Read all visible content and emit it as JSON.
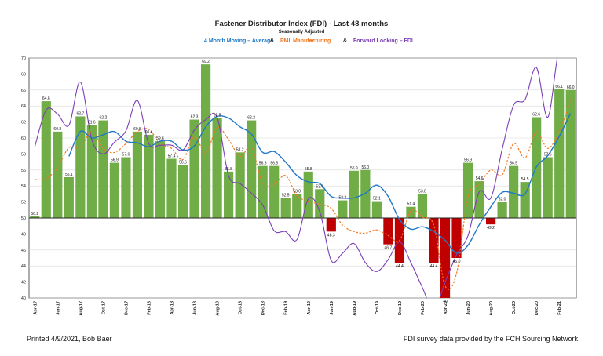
{
  "chart_data": {
    "type": "bar",
    "title": "Fastener Distributor Index (FDI) - Last 48 months",
    "subtitle": "Seasonally Adjusted",
    "legend": [
      {
        "text": "4 Month Moving – Average",
        "color": "#1f77c8"
      },
      {
        "text": "&",
        "color": "#222222"
      },
      {
        "text": "PMI",
        "color": "#f07820"
      },
      {
        "text": "Manufacturing",
        "color": "#f07820"
      },
      {
        "text": "&",
        "color": "#222222"
      },
      {
        "text": "Forward Looking – FDI",
        "color": "#7b3fb5"
      }
    ],
    "ylim": [
      40,
      70
    ],
    "yticks": [
      "40",
      "42",
      "44",
      "46",
      "48",
      "50",
      "52",
      "54",
      "56",
      "58",
      "60",
      "62",
      "64",
      "66",
      "68",
      "70"
    ],
    "baseline": 50,
    "grid": true,
    "xtick_labels": [
      "Apr-17",
      "Jun-17",
      "Aug-17",
      "Oct-17",
      "Dec-17",
      "Feb-18",
      "Apr-18",
      "Jun-18",
      "Aug-18",
      "Oct-18",
      "Dec-18",
      "Feb-19",
      "Apr-19",
      "Jun-19",
      "Aug-19",
      "Oct-19",
      "Dec-19",
      "Feb-20",
      "Apr-20",
      "Jun-20",
      "Aug-20",
      "Oct-20",
      "Dec-20",
      "Feb-21"
    ],
    "fdi_values": [
      50.2,
      64.6,
      60.8,
      55.1,
      62.7,
      61.6,
      62.2,
      56.9,
      57.6,
      60.8,
      60.4,
      59.6,
      57.4,
      56.6,
      62.3,
      69.2,
      62.5,
      55.8,
      58.2,
      62.2,
      56.5,
      56.5,
      52.5,
      53.0,
      55.8,
      53.6,
      48.3,
      52.2,
      55.9,
      56.0,
      52.1,
      46.7,
      44.4,
      51.4,
      53.0,
      44.4,
      40.0,
      45.0,
      56.9,
      54.6,
      49.2,
      52.0,
      56.5,
      54.5,
      62.6,
      57.6,
      66.1,
      66.0
    ],
    "fdi_labels": [
      "50.2",
      "64.6",
      "60.8",
      "55.1",
      "62.7",
      "61.6",
      "62.2",
      "56.9",
      "57.6",
      "60.8",
      "60.4",
      "59.6",
      "57.4",
      "56.6",
      "62.3",
      "69.2",
      "62.5",
      "55.8",
      "58.2",
      "62.2",
      "56.5",
      "56.5",
      "52.5",
      "53.0",
      "55.8",
      "53.6",
      "48.3",
      "52.2",
      "55.9",
      "56.0",
      "52.1",
      "46.7",
      "44.4",
      "51.4",
      "53.0",
      "44.4",
      "40",
      "45.0",
      "56.9",
      "54.6",
      "49.2",
      "52.0",
      "56.5",
      "54.5",
      "62.6",
      "57.6",
      "66.1",
      "66.0"
    ],
    "colors": {
      "above": "#70ad47",
      "below": "#c00000",
      "ma": "#1f77c8",
      "pmi": "#f07820",
      "forward": "#7b3fb5"
    },
    "series": [
      {
        "name": "4 Month Moving – Average",
        "values": [
          null,
          null,
          null,
          57.7,
          60.8,
          60.0,
          60.4,
          60.8,
          59.6,
          59.4,
          58.9,
          59.6,
          59.6,
          58.5,
          59.0,
          61.4,
          62.7,
          62.5,
          61.4,
          60.5,
          58.2,
          58.3,
          57.0,
          55.3,
          54.5,
          54.3,
          52.7,
          52.5,
          52.5,
          53.1,
          54.1,
          52.7,
          49.8,
          48.6,
          48.9,
          48.3,
          47.2,
          45.6,
          46.6,
          49.2,
          51.4,
          53.2,
          53.1,
          53.0,
          56.4,
          57.8,
          60.2,
          63.1
        ]
      },
      {
        "name": "PMI – Manufacturing",
        "values": [
          54.8,
          54.9,
          56.3,
          58.8,
          58.8,
          60.8,
          58.7,
          58.2,
          59.3,
          60.8,
          61.1,
          59.3,
          58.7,
          57.3,
          60.2,
          58.1,
          61.3,
          59.8,
          57.7,
          58.8,
          54.3,
          54.2,
          55.3,
          52.8,
          52.1,
          51.7,
          51.2,
          49.1,
          48.3,
          48.1,
          48.5,
          47.8,
          47.2,
          50.9,
          50.1,
          49.1,
          41.5,
          43.1,
          52.6,
          54.2,
          56.0,
          55.4,
          59.3,
          57.5,
          60.7,
          58.7,
          60.8,
          64.7
        ]
      },
      {
        "name": "Forward Looking – FDI",
        "values": [
          58.9,
          63.5,
          63.0,
          61.6,
          67.0,
          59.8,
          58.0,
          59.5,
          60.9,
          64.7,
          59.3,
          59.1,
          59.1,
          58.5,
          61.0,
          62.3,
          62.6,
          55.3,
          54.3,
          53.1,
          51.6,
          48.4,
          48.3,
          47.3,
          52.4,
          50.8,
          44.7,
          45.6,
          46.8,
          44.4,
          43.3,
          44.8,
          47.0,
          44.4,
          41.3,
          38.5,
          42.0,
          45.4,
          47.8,
          53.3,
          52.5,
          58.6,
          64.1,
          64.8,
          68.8,
          62.6,
          71.2,
          71.2
        ]
      }
    ]
  },
  "footer": {
    "left": "Printed 4/9/2021, Bob Baer",
    "right": "FDI survey data provided by the FCH Sourcing Network"
  }
}
